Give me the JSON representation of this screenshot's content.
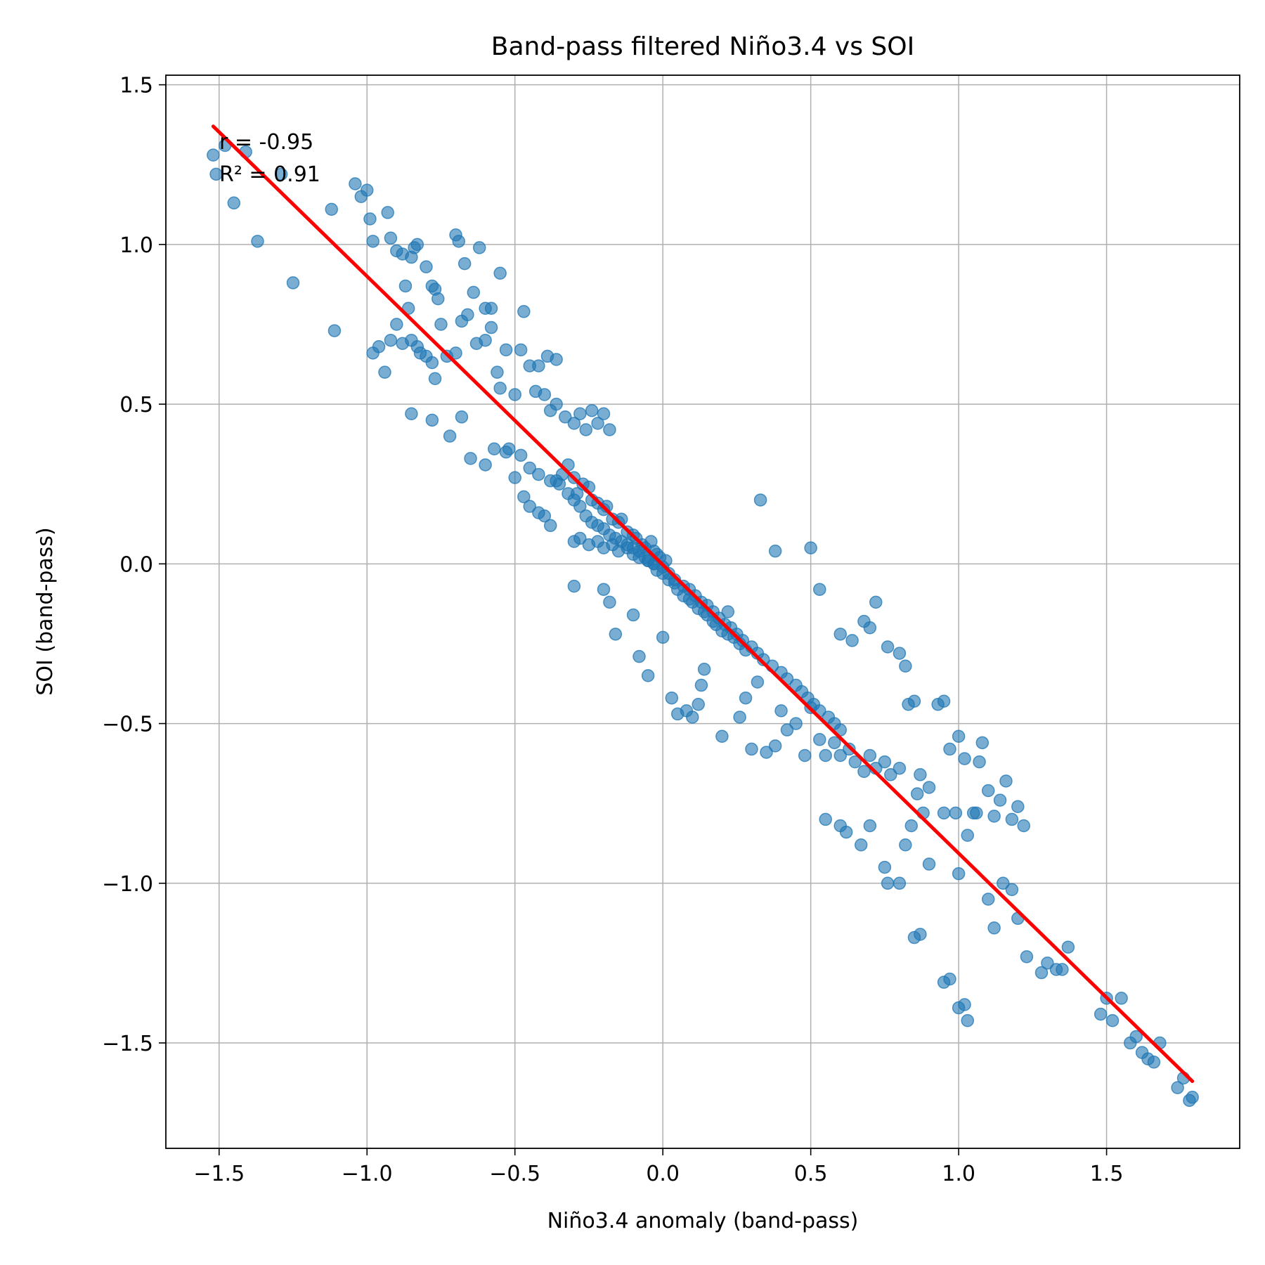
{
  "chart_data": {
    "type": "scatter",
    "title": "Band-pass filtered Niño3.4 vs SOI",
    "xlabel": "Niño3.4 anomaly (band-pass)",
    "ylabel": "SOI (band-pass)",
    "xlim": [
      -1.68,
      1.95
    ],
    "ylim": [
      -1.83,
      1.53
    ],
    "xticks": [
      -1.5,
      -1.0,
      -0.5,
      0.0,
      0.5,
      1.0,
      1.5
    ],
    "xtick_labels": [
      "−1.5",
      "−1.0",
      "−0.5",
      "0.0",
      "0.5",
      "1.0",
      "1.5"
    ],
    "yticks": [
      -1.5,
      -1.0,
      -0.5,
      0.0,
      0.5,
      1.0,
      1.5
    ],
    "ytick_labels": [
      "−1.5",
      "−1.0",
      "−0.5",
      "0.0",
      "0.5",
      "1.0",
      "1.5"
    ],
    "grid": true,
    "annotations": [
      "r = -0.95",
      "R² = 0.91"
    ],
    "series": [
      {
        "name": "data",
        "color": "#1f77b4",
        "x": [
          -1.52,
          -1.48,
          -1.41,
          -1.51,
          -1.29,
          -1.45,
          -1.37,
          -1.25,
          -1.12,
          -1.11,
          -1.04,
          -1.02,
          -1.0,
          -0.99,
          -0.98,
          -0.93,
          -0.92,
          -0.9,
          -0.88,
          -0.87,
          -0.85,
          -0.84,
          -0.83,
          -0.8,
          -0.78,
          -0.77,
          -0.76,
          -0.7,
          -0.69,
          -0.67,
          -0.64,
          -0.62,
          -0.6,
          -0.58,
          -0.55,
          -0.47,
          -0.42,
          -0.39,
          -0.36,
          -0.98,
          -0.96,
          -0.94,
          -0.92,
          -0.9,
          -0.88,
          -0.86,
          -0.85,
          -0.83,
          -0.82,
          -0.8,
          -0.78,
          -0.77,
          -0.75,
          -0.73,
          -0.7,
          -0.68,
          -0.66,
          -0.63,
          -0.6,
          -0.58,
          -0.56,
          -0.55,
          -0.53,
          -0.5,
          -0.48,
          -0.45,
          -0.43,
          -0.4,
          -0.38,
          -0.36,
          -0.33,
          -0.3,
          -0.28,
          -0.26,
          -0.24,
          -0.22,
          -0.2,
          -0.18,
          -0.85,
          -0.78,
          -0.72,
          -0.68,
          -0.65,
          -0.6,
          -0.57,
          -0.53,
          -0.5,
          -0.47,
          -0.45,
          -0.42,
          -0.4,
          -0.38,
          -0.36,
          -0.34,
          -0.32,
          -0.3,
          -0.29,
          -0.27,
          -0.25,
          -0.24,
          -0.22,
          -0.2,
          -0.19,
          -0.17,
          -0.15,
          -0.14,
          -0.12,
          -0.1,
          -0.09,
          -0.07,
          -0.06,
          -0.04,
          -0.03,
          -0.02,
          -0.01,
          0.01,
          -0.52,
          -0.48,
          -0.45,
          -0.42,
          -0.38,
          -0.35,
          -0.32,
          -0.3,
          -0.28,
          -0.26,
          -0.24,
          -0.22,
          -0.2,
          -0.18,
          -0.16,
          -0.14,
          -0.12,
          -0.1,
          -0.08,
          -0.06,
          -0.05,
          -0.03,
          -0.02,
          0.0,
          0.02,
          0.04,
          0.05,
          0.07,
          0.09,
          0.1,
          0.12,
          0.14,
          0.15,
          0.17,
          0.18,
          0.2,
          0.22,
          0.24,
          0.26,
          0.28,
          -0.3,
          -0.28,
          -0.25,
          -0.22,
          -0.2,
          -0.17,
          -0.15,
          -0.12,
          -0.1,
          -0.08,
          -0.05,
          -0.03,
          0.0,
          0.02,
          0.04,
          0.07,
          0.09,
          0.11,
          0.13,
          0.15,
          0.17,
          0.19,
          0.21,
          0.23,
          0.25,
          0.27,
          0.3,
          0.32,
          0.34,
          0.37,
          0.4,
          0.42,
          0.45,
          0.47,
          0.49,
          0.51,
          0.53,
          0.56,
          0.58,
          0.6,
          -0.3,
          -0.2,
          -0.18,
          -0.16,
          -0.1,
          -0.08,
          -0.05,
          0.0,
          0.03,
          0.05,
          0.08,
          0.1,
          0.12,
          0.13,
          0.14,
          0.2,
          0.22,
          0.26,
          0.28,
          0.3,
          0.32,
          0.35,
          0.38,
          0.4,
          0.42,
          0.45,
          0.48,
          0.5,
          0.53,
          0.55,
          0.58,
          0.6,
          0.63,
          0.65,
          0.68,
          0.7,
          0.72,
          0.75,
          0.77,
          0.8,
          0.33,
          0.38,
          0.5,
          0.53,
          0.6,
          0.64,
          0.68,
          0.7,
          0.72,
          0.76,
          0.8,
          0.82,
          0.83,
          0.85,
          0.87,
          0.9,
          0.93,
          0.95,
          0.97,
          0.99,
          1.0,
          1.02,
          1.05,
          1.07,
          1.08,
          1.1,
          1.12,
          1.14,
          1.16,
          1.18,
          1.2,
          1.22,
          0.55,
          0.6,
          0.62,
          0.67,
          0.7,
          0.75,
          0.76,
          0.8,
          0.82,
          0.84,
          0.86,
          0.88,
          0.9,
          0.95,
          1.0,
          1.03,
          1.06,
          1.1,
          1.12,
          1.15,
          1.18,
          1.2,
          1.23,
          1.28,
          1.3,
          1.33,
          1.35,
          1.37,
          0.85,
          0.87,
          0.95,
          0.97,
          1.0,
          1.02,
          1.03,
          1.48,
          1.5,
          1.52,
          1.55,
          1.58,
          1.6,
          1.62,
          1.64,
          1.66,
          1.68,
          1.74,
          1.76,
          1.78,
          1.79
        ],
        "y": [
          1.28,
          1.31,
          1.29,
          1.22,
          1.22,
          1.13,
          1.01,
          0.88,
          1.11,
          0.73,
          1.19,
          1.15,
          1.17,
          1.08,
          1.01,
          1.1,
          1.02,
          0.98,
          0.97,
          0.87,
          0.96,
          0.99,
          1.0,
          0.93,
          0.87,
          0.86,
          0.83,
          1.03,
          1.01,
          0.94,
          0.85,
          0.99,
          0.8,
          0.8,
          0.91,
          0.79,
          0.62,
          0.65,
          0.64,
          0.66,
          0.68,
          0.6,
          0.7,
          0.75,
          0.69,
          0.8,
          0.7,
          0.68,
          0.66,
          0.65,
          0.63,
          0.58,
          0.75,
          0.65,
          0.66,
          0.76,
          0.78,
          0.69,
          0.7,
          0.74,
          0.6,
          0.55,
          0.67,
          0.53,
          0.67,
          0.62,
          0.54,
          0.53,
          0.48,
          0.5,
          0.46,
          0.44,
          0.47,
          0.42,
          0.48,
          0.44,
          0.47,
          0.42,
          0.47,
          0.45,
          0.4,
          0.46,
          0.33,
          0.31,
          0.36,
          0.35,
          0.27,
          0.21,
          0.18,
          0.16,
          0.15,
          0.12,
          0.26,
          0.28,
          0.31,
          0.27,
          0.22,
          0.25,
          0.24,
          0.2,
          0.19,
          0.17,
          0.18,
          0.14,
          0.13,
          0.14,
          0.1,
          0.09,
          0.08,
          0.06,
          0.05,
          0.07,
          0.04,
          0.03,
          0.02,
          0.01,
          0.36,
          0.34,
          0.3,
          0.28,
          0.26,
          0.25,
          0.22,
          0.2,
          0.18,
          0.15,
          0.13,
          0.12,
          0.11,
          0.09,
          0.08,
          0.07,
          0.06,
          0.05,
          0.04,
          0.02,
          0.01,
          0.0,
          -0.02,
          -0.03,
          -0.05,
          -0.06,
          -0.08,
          -0.1,
          -0.11,
          -0.12,
          -0.14,
          -0.15,
          -0.16,
          -0.18,
          -0.19,
          -0.21,
          -0.22,
          -0.23,
          -0.25,
          -0.27,
          0.07,
          0.08,
          0.06,
          0.07,
          0.05,
          0.06,
          0.04,
          0.05,
          0.03,
          0.02,
          0.01,
          0.0,
          -0.01,
          -0.03,
          -0.05,
          -0.07,
          -0.08,
          -0.1,
          -0.12,
          -0.13,
          -0.15,
          -0.17,
          -0.19,
          -0.2,
          -0.22,
          -0.24,
          -0.26,
          -0.28,
          -0.3,
          -0.32,
          -0.34,
          -0.36,
          -0.38,
          -0.4,
          -0.42,
          -0.44,
          -0.46,
          -0.48,
          -0.5,
          -0.52,
          -0.07,
          -0.08,
          -0.12,
          -0.22,
          -0.16,
          -0.29,
          -0.35,
          -0.23,
          -0.42,
          -0.47,
          -0.46,
          -0.48,
          -0.44,
          -0.38,
          -0.33,
          -0.54,
          -0.15,
          -0.48,
          -0.42,
          -0.58,
          -0.37,
          -0.59,
          -0.57,
          -0.46,
          -0.52,
          -0.5,
          -0.6,
          -0.45,
          -0.55,
          -0.6,
          -0.56,
          -0.6,
          -0.58,
          -0.62,
          -0.65,
          -0.6,
          -0.64,
          -0.62,
          -0.66,
          -0.64,
          0.2,
          0.04,
          0.05,
          -0.08,
          -0.22,
          -0.24,
          -0.18,
          -0.2,
          -0.12,
          -0.26,
          -0.28,
          -0.32,
          -0.44,
          -0.43,
          -0.66,
          -0.7,
          -0.44,
          -0.43,
          -0.58,
          -0.78,
          -0.54,
          -0.61,
          -0.78,
          -0.62,
          -0.56,
          -0.71,
          -0.79,
          -0.74,
          -0.68,
          -0.8,
          -0.76,
          -0.82,
          -0.8,
          -0.82,
          -0.84,
          -0.88,
          -0.82,
          -0.95,
          -1.0,
          -1.0,
          -0.88,
          -0.82,
          -0.72,
          -0.78,
          -0.94,
          -0.78,
          -0.97,
          -0.85,
          -0.78,
          -1.05,
          -1.14,
          -1.0,
          -1.02,
          -1.11,
          -1.23,
          -1.28,
          -1.25,
          -1.27,
          -1.27,
          -1.2,
          -1.17,
          -1.16,
          -1.31,
          -1.3,
          -1.39,
          -1.38,
          -1.43,
          -1.41,
          -1.36,
          -1.43,
          -1.36,
          -1.5,
          -1.48,
          -1.53,
          -1.55,
          -1.56,
          -1.5,
          -1.64,
          -1.61,
          -1.68,
          -1.67
        ]
      },
      {
        "name": "fit",
        "color": "#ff0000",
        "x": [
          -1.52,
          1.79
        ],
        "y": [
          1.37,
          -1.62
        ]
      }
    ]
  }
}
